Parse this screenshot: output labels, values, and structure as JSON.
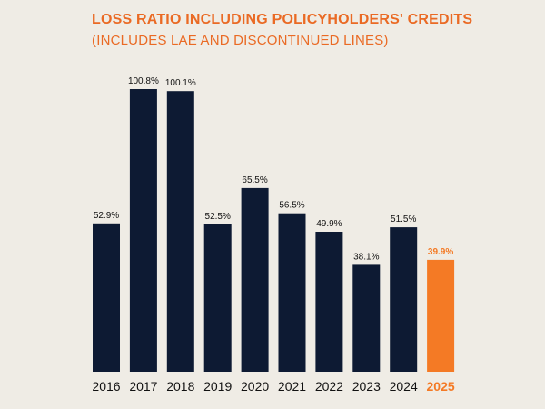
{
  "header": {
    "title": "LOSS RATIO INCLUDING POLICYHOLDERS' CREDITS",
    "subtitle": "(INCLUDES LAE AND DISCONTINUED LINES)"
  },
  "colors": {
    "background": "#efece5",
    "bar": "#0d1a33",
    "highlight": "#f47a25",
    "text": "#111111",
    "title": "#ea6a24"
  },
  "chart_data": {
    "type": "bar",
    "title": "LOSS RATIO INCLUDING POLICYHOLDERS' CREDITS",
    "subtitle": "(INCLUDES LAE AND DISCONTINUED LINES)",
    "xlabel": "",
    "ylabel": "",
    "categories": [
      "2016",
      "2017",
      "2018",
      "2019",
      "2020",
      "2021",
      "2022",
      "2023",
      "2024",
      "2025"
    ],
    "values": [
      52.9,
      100.8,
      100.1,
      52.5,
      65.5,
      56.5,
      49.9,
      38.1,
      51.5,
      39.9
    ],
    "value_labels": [
      "52.9%",
      "100.8%",
      "100.1%",
      "52.5%",
      "65.5%",
      "56.5%",
      "49.9%",
      "38.1%",
      "51.5%",
      "39.9%"
    ],
    "highlight_category": "2025",
    "ylim": [
      0,
      100.8
    ],
    "grid": false,
    "legend": "none"
  }
}
